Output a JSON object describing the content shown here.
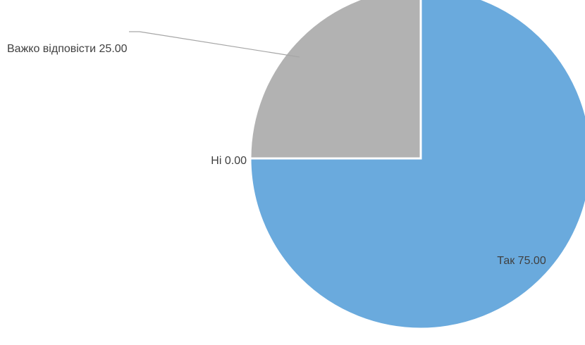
{
  "chart_data": {
    "type": "pie",
    "title": "",
    "legend": "none",
    "slices": [
      {
        "label": "Так",
        "value": 75.0,
        "value_text": "75.00",
        "color": "#6aaadd"
      },
      {
        "label": "Ні",
        "value": 0.0,
        "value_text": "0.00",
        "color": "#ed7d31"
      },
      {
        "label": "Важко відповісти",
        "value": 25.0,
        "value_text": "25.00",
        "color": "#b2b2b2"
      }
    ],
    "start_angle_deg": 0,
    "direction": "clockwise",
    "label_color": "#404040"
  }
}
